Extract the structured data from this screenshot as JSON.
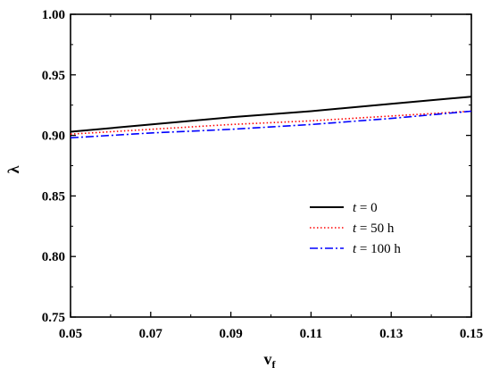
{
  "chart_data": {
    "type": "line",
    "title": "",
    "xlabel": "v",
    "xlabel_sub": "f",
    "ylabel": "λ",
    "xlim": [
      0.05,
      0.15
    ],
    "ylim": [
      0.75,
      1.0
    ],
    "xticks": [
      0.05,
      0.07,
      0.09,
      0.11,
      0.13,
      0.15
    ],
    "xtick_labels": [
      "0.05",
      "0.07",
      "0.09",
      "0.11",
      "0.13",
      "0.15"
    ],
    "yticks": [
      0.75,
      0.8,
      0.85,
      0.9,
      0.95,
      1.0
    ],
    "ytick_labels": [
      "0.75",
      "0.80",
      "0.85",
      "0.90",
      "0.95",
      "1.00"
    ],
    "grid": false,
    "legend_position": "bottom-right",
    "series": [
      {
        "name": "t = 0",
        "name_italic": "t",
        "name_rest": " = 0",
        "color": "#000000",
        "dash": "solid",
        "x": [
          0.05,
          0.07,
          0.09,
          0.11,
          0.13,
          0.15
        ],
        "y": [
          0.903,
          0.909,
          0.915,
          0.92,
          0.926,
          0.932
        ]
      },
      {
        "name": "t = 50 h",
        "name_italic": "t",
        "name_rest": " = 50 h",
        "color": "#ff0000",
        "dash": "dotted",
        "x": [
          0.05,
          0.07,
          0.09,
          0.11,
          0.13,
          0.15
        ],
        "y": [
          0.901,
          0.905,
          0.909,
          0.912,
          0.916,
          0.92
        ]
      },
      {
        "name": "t = 100 h",
        "name_italic": "t",
        "name_rest": " = 100 h",
        "color": "#0000ff",
        "dash": "dashdot",
        "x": [
          0.05,
          0.07,
          0.09,
          0.11,
          0.13,
          0.15
        ],
        "y": [
          0.898,
          0.902,
          0.905,
          0.909,
          0.914,
          0.92
        ]
      }
    ]
  }
}
